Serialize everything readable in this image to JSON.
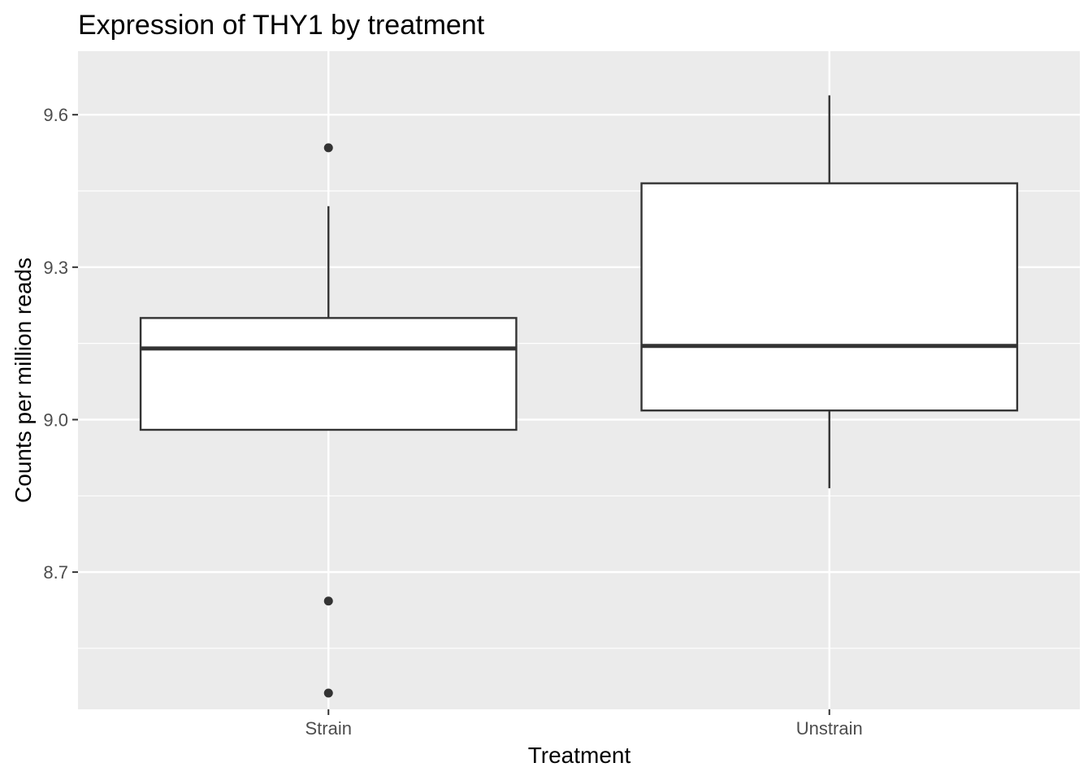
{
  "chart_data": {
    "type": "boxplot",
    "title": "Expression of THY1 by treatment",
    "xlabel": "Treatment",
    "ylabel": "Counts per million reads",
    "categories": [
      "Strain",
      "Unstrain"
    ],
    "ylim": [
      8.43,
      9.725
    ],
    "yticks": [
      8.7,
      9.0,
      9.3,
      9.6
    ],
    "ytick_labels": [
      "8.7",
      "9.0",
      "9.3",
      "9.6"
    ],
    "grid": true,
    "legend": "none",
    "boxes": [
      {
        "category": "Strain",
        "whisker_low": 8.98,
        "q1": 8.98,
        "median": 9.14,
        "q3": 9.2,
        "whisker_high": 9.42,
        "outliers": [
          9.535,
          8.643,
          8.462
        ]
      },
      {
        "category": "Unstrain",
        "whisker_low": 8.865,
        "q1": 9.018,
        "median": 9.145,
        "q3": 9.465,
        "whisker_high": 9.638,
        "outliers": []
      }
    ],
    "colors": {
      "panel": "#EBEBEB",
      "grid": "#FFFFFF",
      "box_fill": "#FFFFFF",
      "box_line": "#333333",
      "outlier": "#333333"
    }
  }
}
